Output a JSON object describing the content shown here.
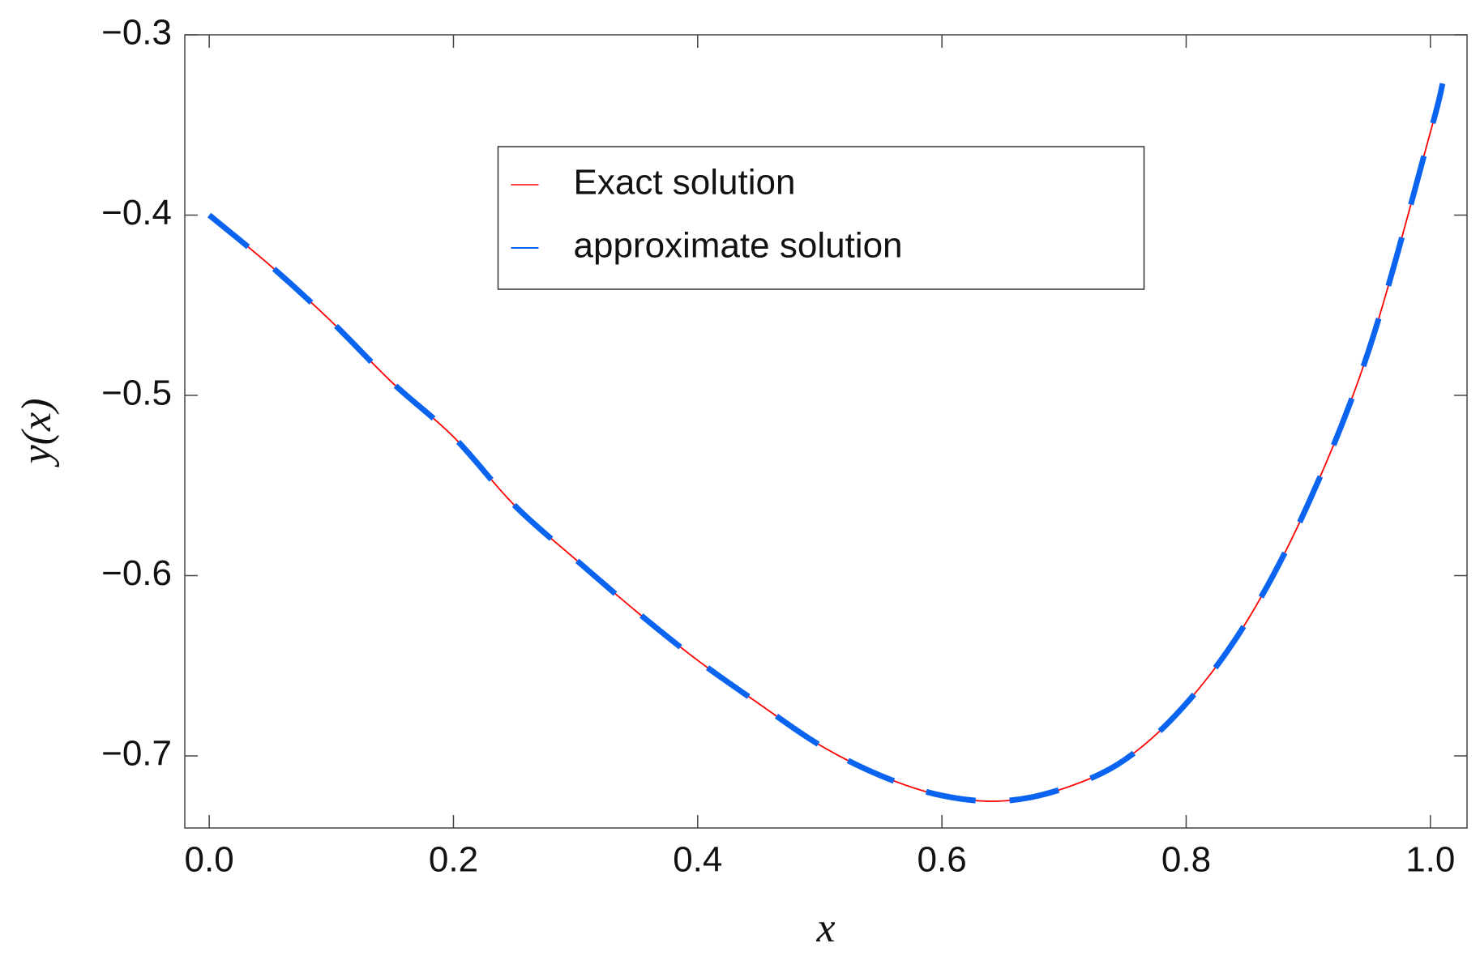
{
  "chart_data": {
    "type": "line",
    "x": [
      0,
      0.05,
      0.1,
      0.15,
      0.2,
      0.25,
      0.3,
      0.35,
      0.4,
      0.45,
      0.5,
      0.55,
      0.6,
      0.65,
      0.7,
      0.75,
      0.8,
      0.85,
      0.9,
      0.95,
      1.0,
      1.01
    ],
    "series": [
      {
        "name": "Exact solution",
        "color": "#ff0000",
        "style": "solid",
        "values": [
          -0.4,
          -0.428,
          -0.459,
          -0.493,
          -0.523,
          -0.561,
          -0.591,
          -0.62,
          -0.647,
          -0.671,
          -0.694,
          -0.711,
          -0.722,
          -0.725,
          -0.718,
          -0.702,
          -0.671,
          -0.625,
          -0.56,
          -0.474,
          -0.354,
          -0.327
        ]
      },
      {
        "name": "approximate solution",
        "color": "#0a64f0",
        "style": "dashed",
        "values": [
          -0.4,
          -0.428,
          -0.459,
          -0.493,
          -0.523,
          -0.561,
          -0.591,
          -0.62,
          -0.647,
          -0.671,
          -0.694,
          -0.711,
          -0.722,
          -0.725,
          -0.718,
          -0.702,
          -0.671,
          -0.625,
          -0.56,
          -0.474,
          -0.354,
          -0.327
        ]
      }
    ],
    "xlabel": "x",
    "ylabel": "y(x)",
    "xlim": [
      -0.02,
      1.03
    ],
    "ylim": [
      -0.74,
      -0.3
    ],
    "xticks": [
      {
        "value": 0,
        "label": "0.0"
      },
      0.2,
      0.4,
      0.6,
      0.8,
      {
        "value": 1,
        "label": "1.0"
      }
    ],
    "yticks": [
      {
        "value": -0.3,
        "label": "−0.3"
      },
      {
        "value": -0.4,
        "label": "−0.4"
      },
      {
        "value": -0.5,
        "label": "−0.5"
      },
      {
        "value": -0.6,
        "label": "−0.6"
      },
      {
        "value": -0.7,
        "label": "−0.7"
      }
    ],
    "legend": "upper center"
  }
}
